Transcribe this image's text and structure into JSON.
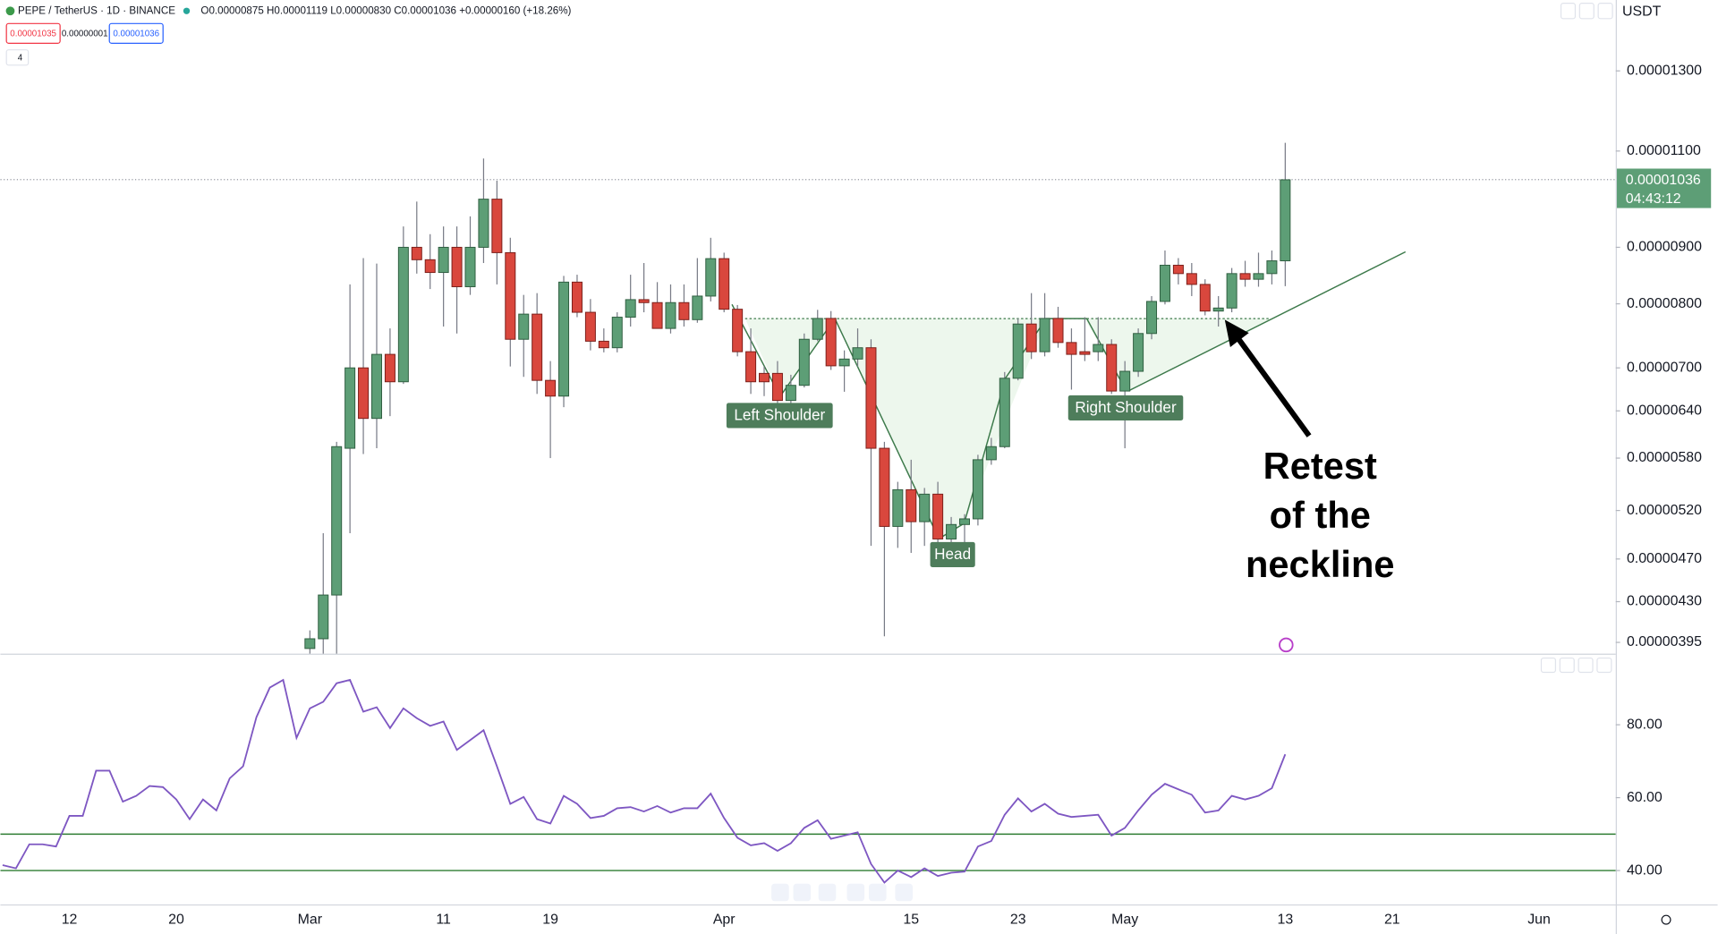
{
  "header": {
    "symbol": "PEPE / TetherUS · 1D · BINANCE",
    "ohlc": "O0.00000875 H0.00001119 L0.00000830 C0.00001036 +0.00000160 (+18.26%)",
    "sell": "0.00001035",
    "spread": "0.00000001",
    "buy": "0.00001036",
    "indicators": "4",
    "currency": "USDT"
  },
  "chart_data": [
    {
      "type": "candlestick",
      "log_scale": true,
      "grid": false,
      "up_color": "#5d9e76",
      "down_color": "#d9473d",
      "wick_color": "#787b86",
      "ylim": [
        3.858e-06,
        1.507e-05
      ],
      "yticks": [
        {
          "value": 1.3e-05,
          "label": "0.00001300"
        },
        {
          "value": 1.1e-05,
          "label": "0.00001100"
        },
        {
          "value": 9e-06,
          "label": "0.00000900"
        },
        {
          "value": 8e-06,
          "label": "0.00000800"
        },
        {
          "value": 7e-06,
          "label": "0.00000700"
        },
        {
          "value": 6.4e-06,
          "label": "0.00000640"
        },
        {
          "value": 5.8e-06,
          "label": "0.00000580"
        },
        {
          "value": 5.2e-06,
          "label": "0.00000520"
        },
        {
          "value": 4.7e-06,
          "label": "0.00000470"
        },
        {
          "value": 4.3e-06,
          "label": "0.00000430"
        },
        {
          "value": 3.95e-06,
          "label": "0.00000395"
        }
      ],
      "categories": [
        "Mar 1",
        "Mar 2",
        "Mar 3",
        "Mar 4",
        "Mar 5",
        "Mar 6",
        "Mar 7",
        "Mar 8",
        "Mar 9",
        "Mar 10",
        "Mar 11",
        "Mar 12",
        "Mar 13",
        "Mar 14",
        "Mar 15",
        "Mar 16",
        "Mar 17",
        "Mar 18",
        "Mar 19",
        "Mar 20",
        "Mar 21",
        "Mar 22",
        "Mar 23",
        "Mar 24",
        "Mar 25",
        "Mar 26",
        "Mar 27",
        "Mar 28",
        "Mar 29",
        "Mar 30",
        "Mar 31",
        "Apr 1",
        "Apr 2",
        "Apr 3",
        "Apr 4",
        "Apr 5",
        "Apr 6",
        "Apr 7",
        "Apr 8",
        "Apr 9",
        "Apr 10",
        "Apr 11",
        "Apr 12",
        "Apr 13",
        "Apr 14",
        "Apr 15",
        "Apr 16",
        "Apr 17",
        "Apr 18",
        "Apr 19",
        "Apr 20",
        "Apr 21",
        "Apr 22",
        "Apr 23",
        "Apr 24",
        "Apr 25",
        "Apr 26",
        "Apr 27",
        "Apr 28",
        "Apr 29",
        "Apr 30",
        "May 1",
        "May 2",
        "May 3",
        "May 4",
        "May 5",
        "May 6",
        "May 7",
        "May 8",
        "May 9",
        "May 10",
        "May 11",
        "May 12",
        "May 13"
      ],
      "open": [
        3.9e-06,
        3.98e-06,
        4.36e-06,
        5.92e-06,
        7e-06,
        6.3e-06,
        7.2e-06,
        6.8e-06,
        9e-06,
        8.77e-06,
        8.54e-06,
        9e-06,
        8.29e-06,
        9e-06,
        9.95e-06,
        8.9e-06,
        7.43e-06,
        7.83e-06,
        6.82e-06,
        6.6e-06,
        8.37e-06,
        7.86e-06,
        7.4e-06,
        7.3e-06,
        7.78e-06,
        8.07e-06,
        8.02e-06,
        7.6e-06,
        8.02e-06,
        7.74e-06,
        8.13e-06,
        8.79e-06,
        7.91e-06,
        7.24e-06,
        6.92e-06,
        6.92e-06,
        6.54e-06,
        6.75e-06,
        7.43e-06,
        7.76e-06,
        7.03e-06,
        7.13e-06,
        7.3e-06,
        5.92e-06,
        5.03e-06,
        5.43e-06,
        5.08e-06,
        5.38e-06,
        4.9e-06,
        5.05e-06,
        5.11e-06,
        5.78e-06,
        5.94e-06,
        6.85e-06,
        7.67e-06,
        7.24e-06,
        7.76e-06,
        7.38e-06,
        7.24e-06,
        7.24e-06,
        7.35e-06,
        6.67e-06,
        6.95e-06,
        7.52e-06,
        8.04e-06,
        8.67e-06,
        8.52e-06,
        8.33e-06,
        7.88e-06,
        7.93e-06,
        8.52e-06,
        8.42e-06,
        8.52e-06,
        8.75e-06
      ],
      "high": [
        4.05e-06,
        4.96e-06,
        6e-06,
        8.33e-06,
        8.8e-06,
        8.7e-06,
        7.6e-06,
        9.4e-06,
        9.9e-06,
        9.25e-06,
        9.4e-06,
        9.4e-06,
        9.6e-06,
        1.083e-05,
        1.034e-05,
        9.18e-06,
        8.15e-06,
        8.18e-06,
        7.1e-06,
        8.48e-06,
        8.5e-06,
        8.08e-06,
        7.6e-06,
        7.86e-06,
        8.5e-06,
        8.71e-06,
        8.37e-06,
        8.33e-06,
        8.33e-06,
        8.8e-06,
        9.18e-06,
        8.9e-06,
        7.98e-06,
        7.6e-06,
        7.02e-06,
        7.1e-06,
        6.9e-06,
        7.52e-06,
        7.9e-06,
        7.88e-06,
        7.26e-06,
        7.6e-06,
        7.43e-06,
        6e-06,
        5.52e-06,
        5.78e-06,
        5.45e-06,
        5.52e-06,
        5.13e-06,
        5.16e-06,
        5.84e-06,
        6.05e-06,
        6.94e-06,
        7.76e-06,
        8.18e-06,
        8.18e-06,
        7.95e-06,
        7.6e-06,
        7.78e-06,
        7.78e-06,
        7.43e-06,
        7.1e-06,
        7.6e-06,
        8.13e-06,
        8.94e-06,
        8.8e-06,
        8.71e-06,
        8.42e-06,
        8.13e-06,
        8.62e-06,
        8.75e-06,
        8.9e-06,
        8.94e-06,
        1.119e-05
      ],
      "low": [
        3.8e-06,
        3.8e-06,
        3.8e-06,
        4.96e-06,
        5.85e-06,
        5.92e-06,
        6.33e-06,
        6.77e-06,
        8.52e-06,
        8.25e-06,
        7.63e-06,
        7.52e-06,
        8.15e-06,
        8.71e-06,
        8.33e-06,
        7.02e-06,
        6.87e-06,
        6.63e-06,
        5.8e-06,
        6.45e-06,
        7.78e-06,
        7.26e-06,
        7.23e-06,
        7.23e-06,
        7.63e-06,
        7.86e-06,
        7.6e-06,
        7.52e-06,
        7.63e-06,
        7.69e-06,
        8.04e-06,
        7.86e-06,
        7.17e-06,
        6.63e-06,
        6.6e-06,
        6.48e-06,
        6.48e-06,
        6.72e-06,
        7.4e-06,
        6.97e-06,
        6.66e-06,
        7.02e-06,
        4.83e-06,
        4e-06,
        4.81e-06,
        4.76e-06,
        4.83e-06,
        4.81e-06,
        4.83e-06,
        4.63e-06,
        5.04e-06,
        5.72e-06,
        5.92e-06,
        6.82e-06,
        7.13e-06,
        7.17e-06,
        7.3e-06,
        6.69e-06,
        7.1e-06,
        7.1e-06,
        6.63e-06,
        5.92e-06,
        6.87e-06,
        7.43e-06,
        7.99e-06,
        8.33e-06,
        8.13e-06,
        7.81e-06,
        7.63e-06,
        7.86e-06,
        8.29e-06,
        8.29e-06,
        8.33e-06,
        8.3e-06
      ],
      "close": [
        3.98e-06,
        4.36e-06,
        5.94e-06,
        7e-06,
        6.3e-06,
        7.2e-06,
        6.8e-06,
        9e-06,
        8.77e-06,
        8.54e-06,
        9e-06,
        8.29e-06,
        9e-06,
        9.95e-06,
        8.9e-06,
        7.43e-06,
        7.83e-06,
        6.82e-06,
        6.6e-06,
        8.37e-06,
        7.86e-06,
        7.4e-06,
        7.3e-06,
        7.78e-06,
        8.07e-06,
        8.02e-06,
        7.6e-06,
        8.02e-06,
        7.74e-06,
        8.13e-06,
        8.79e-06,
        7.91e-06,
        7.24e-06,
        6.8e-06,
        6.8e-06,
        6.54e-06,
        6.75e-06,
        7.43e-06,
        7.76e-06,
        7.03e-06,
        7.13e-06,
        7.3e-06,
        5.92e-06,
        5.03e-06,
        5.43e-06,
        5.08e-06,
        5.38e-06,
        4.9e-06,
        5.05e-06,
        5.11e-06,
        5.78e-06,
        5.94e-06,
        6.85e-06,
        7.67e-06,
        7.24e-06,
        7.76e-06,
        7.38e-06,
        7.2e-06,
        7.2e-06,
        7.35e-06,
        6.67e-06,
        6.95e-06,
        7.52e-06,
        8.04e-06,
        8.67e-06,
        8.52e-06,
        8.33e-06,
        7.88e-06,
        7.93e-06,
        8.52e-06,
        8.42e-06,
        8.52e-06,
        8.75e-06,
        1.036e-05
      ],
      "price_label": "0.00001036",
      "countdown": "04:43:12",
      "annotations": [
        "Left Shoulder",
        "Head",
        "Right Shoulder"
      ],
      "note": [
        "Retest",
        "of the",
        "neckline"
      ]
    },
    {
      "type": "line",
      "grid": false,
      "ylim": [
        30.7,
        99.2
      ],
      "yticks": [
        {
          "value": 80,
          "label": "80.00"
        },
        {
          "value": 60,
          "label": "60.00"
        },
        {
          "value": 40,
          "label": "40.00"
        }
      ],
      "hlines": [
        {
          "value": 50,
          "color": "#2e7d32"
        },
        {
          "value": 40,
          "color": "#2e7d32"
        }
      ],
      "categories": [
        "Feb 7",
        "Feb 8",
        "Feb 9",
        "Feb 10",
        "Feb 11",
        "Feb 12",
        "Feb 13",
        "Feb 14",
        "Feb 15",
        "Feb 16",
        "Feb 17",
        "Feb 18",
        "Feb 19",
        "Feb 20",
        "Feb 21",
        "Feb 22",
        "Feb 23",
        "Feb 24",
        "Feb 25",
        "Feb 26",
        "Feb 27",
        "Feb 28",
        "Feb 29",
        "Mar 1",
        "Mar 2",
        "Mar 3",
        "Mar 4",
        "Mar 5",
        "Mar 6",
        "Mar 7",
        "Mar 8",
        "Mar 9",
        "Mar 10",
        "Mar 11",
        "Mar 12",
        "Mar 13",
        "Mar 14",
        "Mar 15",
        "Mar 16",
        "Mar 17",
        "Mar 18",
        "Mar 19",
        "Mar 20",
        "Mar 21",
        "Mar 22",
        "Mar 23",
        "Mar 24",
        "Mar 25",
        "Mar 26",
        "Mar 27",
        "Mar 28",
        "Mar 29",
        "Mar 30",
        "Mar 31",
        "Apr 1",
        "Apr 2",
        "Apr 3",
        "Apr 4",
        "Apr 5",
        "Apr 6",
        "Apr 7",
        "Apr 8",
        "Apr 9",
        "Apr 10",
        "Apr 11",
        "Apr 12",
        "Apr 13",
        "Apr 14",
        "Apr 15",
        "Apr 16",
        "Apr 17",
        "Apr 18",
        "Apr 19",
        "Apr 20",
        "Apr 21",
        "Apr 22",
        "Apr 23",
        "Apr 24",
        "Apr 25",
        "Apr 26",
        "Apr 27",
        "Apr 28",
        "Apr 29",
        "Apr 30",
        "May 1",
        "May 2",
        "May 3",
        "May 4",
        "May 5",
        "May 6",
        "May 7",
        "May 8",
        "May 9",
        "May 10",
        "May 11",
        "May 12",
        "May 13"
      ],
      "series": [
        {
          "color": "#7e57c2",
          "values": [
            41.5,
            40.6,
            47.2,
            47.2,
            46.6,
            55.0,
            55.0,
            67.4,
            67.4,
            58.9,
            60.5,
            63.2,
            62.9,
            59.5,
            54.1,
            59.5,
            56.5,
            65.3,
            68.6,
            82.1,
            90.2,
            92.3,
            76.4,
            84.5,
            86.3,
            91.4,
            92.3,
            83.6,
            84.8,
            79.1,
            84.5,
            81.8,
            79.7,
            80.9,
            73.1,
            75.8,
            78.5,
            68.6,
            58.3,
            60.2,
            54.1,
            52.9,
            60.5,
            58.3,
            54.4,
            55.0,
            57.1,
            57.4,
            56.2,
            57.7,
            55.9,
            57.1,
            57.1,
            61.1,
            54.4,
            49.0,
            46.9,
            47.5,
            45.4,
            47.5,
            51.7,
            53.8,
            48.7,
            49.6,
            50.5,
            41.8,
            36.7,
            40.0,
            38.2,
            40.6,
            38.5,
            39.4,
            39.7,
            46.6,
            48.1,
            55.3,
            59.8,
            56.2,
            58.3,
            55.6,
            54.7,
            55.0,
            55.3,
            49.6,
            51.7,
            56.5,
            60.8,
            63.8,
            62.3,
            60.8,
            55.9,
            56.5,
            60.5,
            59.5,
            60.5,
            62.6,
            71.9
          ]
        }
      ],
      "xticks": [
        {
          "value": "Feb 12",
          "label": "12"
        },
        {
          "value": "Feb 20",
          "label": "20"
        },
        {
          "value": "Mar 1",
          "label": "Mar"
        },
        {
          "value": "Mar 11",
          "label": "11"
        },
        {
          "value": "Mar 19",
          "label": "19"
        },
        {
          "value": "Apr 1",
          "label": "Apr"
        },
        {
          "value": "Apr 15",
          "label": "15"
        },
        {
          "value": "Apr 23",
          "label": "23"
        },
        {
          "value": "May 1",
          "label": "May"
        },
        {
          "value": "May 13",
          "label": "13"
        },
        {
          "value": "May 21",
          "label": "21"
        },
        {
          "value": "Jun 1",
          "label": "Jun"
        }
      ]
    }
  ]
}
